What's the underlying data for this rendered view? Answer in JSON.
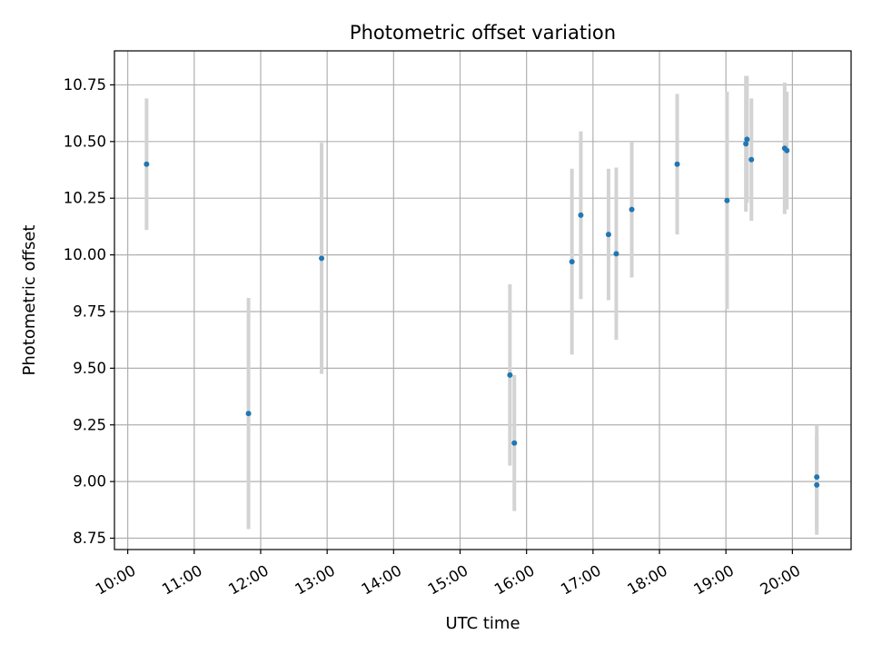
{
  "chart_data": {
    "type": "scatter",
    "title": "Photometric offset variation",
    "xlabel": "UTC time",
    "ylabel": "Photometric offset",
    "x_ticks": [
      "10:00",
      "11:00",
      "12:00",
      "13:00",
      "14:00",
      "15:00",
      "16:00",
      "17:00",
      "18:00",
      "19:00",
      "20:00"
    ],
    "y_ticks": [
      "8.75",
      "9.00",
      "9.25",
      "9.50",
      "9.75",
      "10.00",
      "10.25",
      "10.50",
      "10.75"
    ],
    "xlim": [
      "09:48",
      "20:53"
    ],
    "ylim": [
      8.7,
      10.9
    ],
    "grid": true,
    "colors": {
      "point": "#1f77b4",
      "errorbar": "#d3d3d3",
      "grid": "#b0b0b0"
    },
    "points": [
      {
        "x": "10:17",
        "y": 10.4,
        "yerr": 0.29
      },
      {
        "x": "11:49",
        "y": 9.3,
        "yerr": 0.51
      },
      {
        "x": "12:55",
        "y": 9.985,
        "yerr": 0.51
      },
      {
        "x": "15:45",
        "y": 9.47,
        "yerr": 0.4
      },
      {
        "x": "15:49",
        "y": 9.17,
        "yerr": 0.3
      },
      {
        "x": "16:41",
        "y": 9.97,
        "yerr": 0.41
      },
      {
        "x": "16:49",
        "y": 10.175,
        "yerr": 0.37
      },
      {
        "x": "17:14",
        "y": 10.09,
        "yerr": 0.29
      },
      {
        "x": "17:21",
        "y": 10.005,
        "yerr": 0.38
      },
      {
        "x": "17:35",
        "y": 10.2,
        "yerr": 0.3
      },
      {
        "x": "18:16",
        "y": 10.4,
        "yerr": 0.31
      },
      {
        "x": "19:01",
        "y": 10.24,
        "yerr": 0.48
      },
      {
        "x": "19:18",
        "y": 10.49,
        "yerr": 0.3
      },
      {
        "x": "19:19",
        "y": 10.51,
        "yerr": 0.28
      },
      {
        "x": "19:23",
        "y": 10.42,
        "yerr": 0.27
      },
      {
        "x": "19:53",
        "y": 10.47,
        "yerr": 0.29
      },
      {
        "x": "19:55",
        "y": 10.46,
        "yerr": 0.26
      },
      {
        "x": "20:22",
        "y": 9.02,
        "yerr": 0.23
      },
      {
        "x": "20:22",
        "y": 8.985,
        "yerr": 0.22
      }
    ]
  }
}
